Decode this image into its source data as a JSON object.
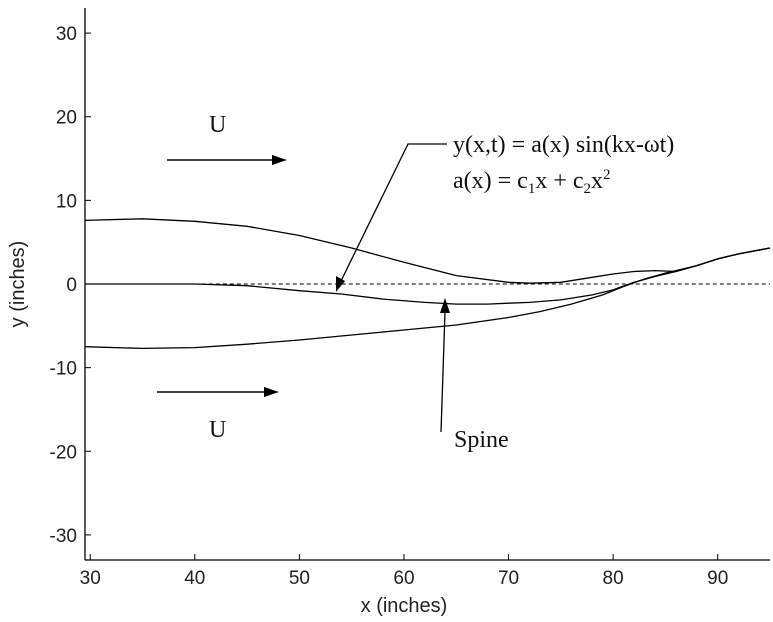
{
  "chart_data": {
    "type": "line",
    "title": "",
    "xlabel": "x (inches)",
    "ylabel": "y (inches)",
    "xlim": [
      29.5,
      95
    ],
    "ylim": [
      -33,
      33
    ],
    "xticks": [
      30,
      40,
      50,
      60,
      70,
      80,
      90
    ],
    "yticks": [
      -30,
      -20,
      -10,
      0,
      10,
      20,
      30
    ],
    "grid": false,
    "series": [
      {
        "x": [
          29.5,
          35,
          40,
          45,
          50,
          55,
          60,
          65,
          70,
          72,
          75,
          78,
          80,
          82,
          84,
          86,
          88,
          90,
          92,
          95
        ],
        "y": [
          7.6,
          7.8,
          7.5,
          6.9,
          5.8,
          4.3,
          2.6,
          1.0,
          0.2,
          0.1,
          0.2,
          0.8,
          1.2,
          1.5,
          1.6,
          1.5,
          2.2,
          3.0,
          3.6,
          4.3
        ],
        "style": "solid"
      },
      {
        "x": [
          29.5,
          35,
          40,
          45,
          50,
          54,
          58,
          62,
          65,
          68,
          70,
          72,
          75,
          78,
          80,
          82,
          84,
          86,
          88,
          90,
          92,
          95
        ],
        "y": [
          0,
          0,
          0,
          -0.2,
          -0.8,
          -1.2,
          -1.8,
          -2.2,
          -2.4,
          -2.4,
          -2.3,
          -2.2,
          -1.9,
          -1.3,
          -0.7,
          0.2,
          0.9,
          1.5,
          2.2,
          3.0,
          3.6,
          4.3
        ],
        "style": "solid"
      },
      {
        "x": [
          29.5,
          35,
          40,
          45,
          50,
          55,
          60,
          65,
          70,
          73,
          76,
          79,
          81,
          83,
          85,
          86,
          88,
          90,
          92,
          95
        ],
        "y": [
          -7.5,
          -7.7,
          -7.6,
          -7.2,
          -6.7,
          -6.1,
          -5.5,
          -4.9,
          -4.0,
          -3.3,
          -2.4,
          -1.3,
          -0.3,
          0.6,
          1.3,
          1.6,
          2.2,
          3.0,
          3.6,
          4.3
        ],
        "style": "solid"
      },
      {
        "x": [
          40,
          95
        ],
        "y": [
          0,
          0
        ],
        "style": "dashed"
      }
    ],
    "annotations": {
      "flow_top": {
        "text": "U"
      },
      "flow_bottom": {
        "text": "U"
      },
      "equation_1": "y(x,t) = a(x) sin(kx-ωt)",
      "equation_2": {
        "prefix": "a(x) = c",
        "sub1": "1",
        "mid": "x + c",
        "sub2": "2",
        "mid2": "x",
        "sup": "2"
      },
      "spine_label": "Spine"
    }
  }
}
